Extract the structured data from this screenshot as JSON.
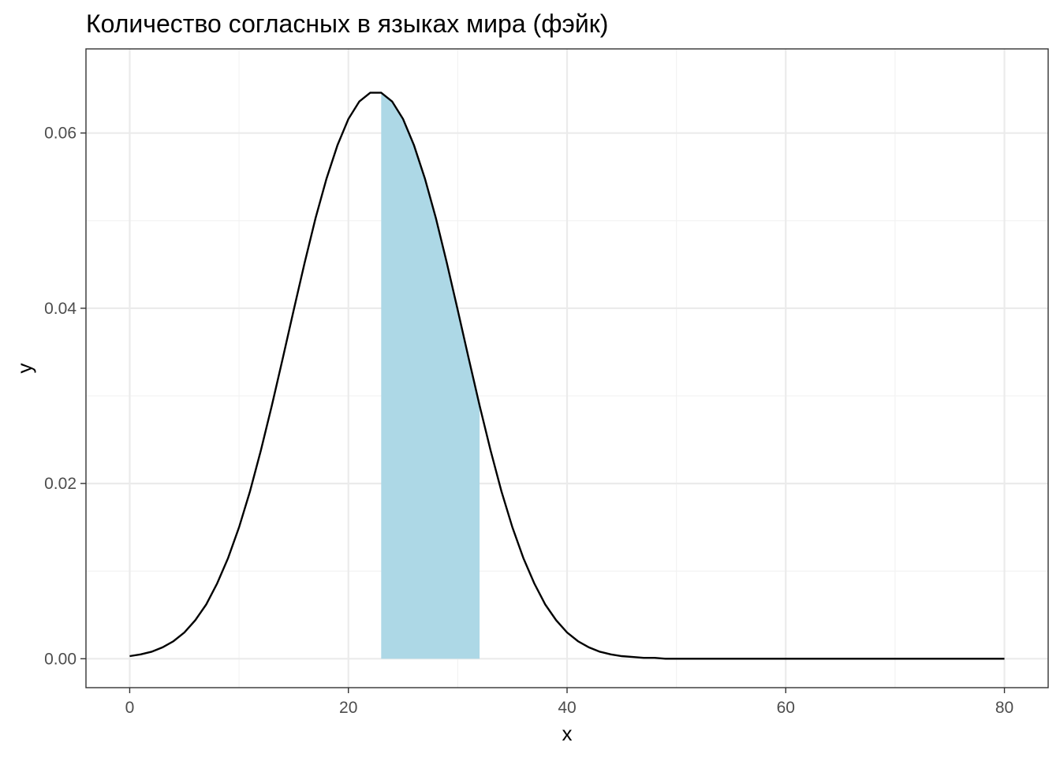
{
  "chart_data": {
    "type": "area",
    "title": "Количество согласных в языках мира (фэйк)",
    "xlabel": "x",
    "ylabel": "y",
    "xlim": [
      -4,
      84
    ],
    "ylim": [
      -0.0033,
      0.0696
    ],
    "x_ticks": [
      0,
      20,
      40,
      60,
      80
    ],
    "x_tick_labels": [
      "0",
      "20",
      "40",
      "60",
      "80"
    ],
    "y_ticks": [
      0.0,
      0.02,
      0.04,
      0.06
    ],
    "y_tick_labels": [
      "0.00",
      "0.02",
      "0.04",
      "0.06"
    ],
    "grid": true,
    "series": [
      {
        "type": "line",
        "x": [
          0,
          1,
          2,
          3,
          4,
          5,
          6,
          7,
          8,
          9,
          10,
          11,
          12,
          13,
          14,
          15,
          16,
          17,
          18,
          19,
          20,
          21,
          22,
          23,
          24,
          25,
          26,
          27,
          28,
          29,
          30,
          31,
          32,
          33,
          34,
          35,
          36,
          37,
          38,
          39,
          40,
          41,
          42,
          43,
          44,
          45,
          46,
          47,
          48,
          49,
          50,
          55,
          60,
          65,
          70,
          75,
          80
        ],
        "y": [
          0.0003,
          0.0005,
          0.0008,
          0.0013,
          0.002,
          0.003,
          0.0044,
          0.0062,
          0.0086,
          0.0115,
          0.015,
          0.0191,
          0.0238,
          0.0289,
          0.0343,
          0.0398,
          0.0452,
          0.0503,
          0.0548,
          0.0586,
          0.0616,
          0.0636,
          0.0646,
          0.0646,
          0.0636,
          0.0616,
          0.0586,
          0.0548,
          0.0503,
          0.0452,
          0.0398,
          0.0343,
          0.0289,
          0.0238,
          0.0191,
          0.015,
          0.0115,
          0.0086,
          0.0062,
          0.0044,
          0.003,
          0.002,
          0.0013,
          0.0008,
          0.0005,
          0.0003,
          0.0002,
          0.0001,
          0.0001,
          0.0,
          0.0,
          0.0,
          0.0,
          0.0,
          0.0,
          0.0,
          0.0
        ],
        "color": "#000000"
      },
      {
        "type": "area",
        "x_from": 23,
        "x_to": 32,
        "color": "#add8e6"
      }
    ]
  }
}
